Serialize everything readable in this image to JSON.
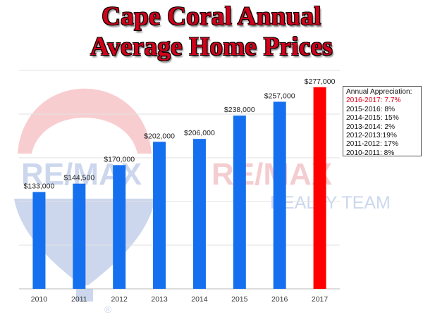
{
  "title_lines": [
    "Cape Coral Annual",
    "Average Home Prices"
  ],
  "colors": {
    "bar": "#1570f0",
    "highlight_bar": "#ff0000",
    "title": "#d0021b",
    "highlight_text": "#e0001a"
  },
  "chart_data": {
    "type": "bar",
    "categories": [
      "2010",
      "2011",
      "2012",
      "2013",
      "2014",
      "2015",
      "2016",
      "2017"
    ],
    "values": [
      133000,
      144500,
      170000,
      202000,
      206000,
      238000,
      257000,
      277000
    ],
    "data_labels": [
      "$133,000",
      "$144,500",
      "$170,000",
      "$202,000",
      "$206,000",
      "$238,000",
      "$257,000",
      "$277,000"
    ],
    "highlight_index": 7,
    "ylim": [
      0,
      300000
    ],
    "grid": true,
    "title": "",
    "xlabel": "",
    "ylabel": ""
  },
  "legend": {
    "heading": "Annual Appreciation:",
    "items": [
      {
        "text": "2016-2017: 7.7%",
        "highlight": true
      },
      {
        "text": "2015-2016: 8%",
        "highlight": false
      },
      {
        "text": "2014-2015: 15%",
        "highlight": false
      },
      {
        "text": "2013-2014: 2%",
        "highlight": false
      },
      {
        "text": "2012-2013:19%",
        "highlight": false
      },
      {
        "text": "2011-2012: 17%",
        "highlight": false
      },
      {
        "text": "2010-2011: 8%",
        "highlight": false
      }
    ]
  },
  "watermark": {
    "logo_text": "RE/MAX",
    "subtitle": "REALTY TEAM"
  }
}
